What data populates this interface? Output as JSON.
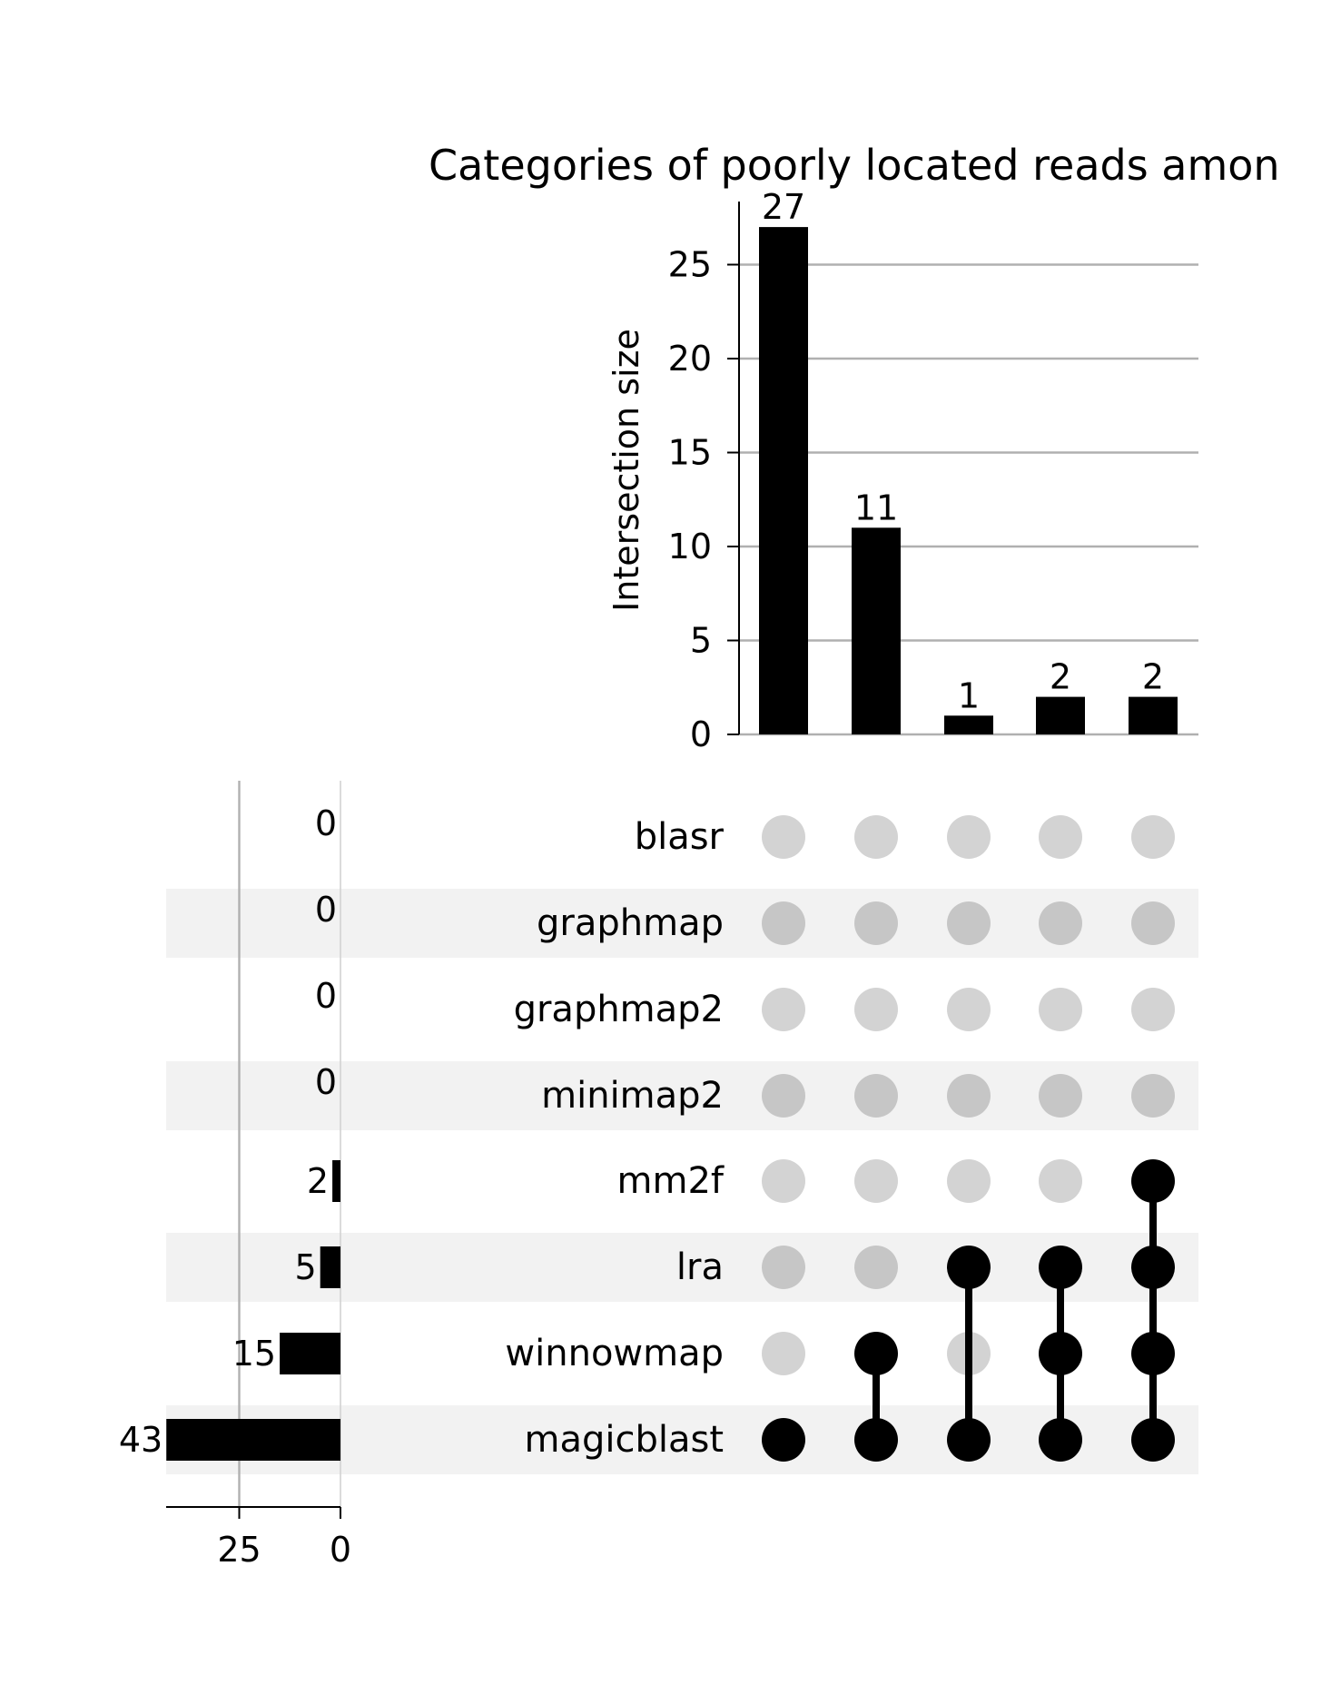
{
  "chart_data": {
    "type": "upset",
    "title": "Categories of poorly located reads amon",
    "intersections": {
      "ylabel": "Intersection size",
      "yticks": [
        0,
        5,
        10,
        15,
        20,
        25
      ],
      "ylim": [
        0,
        28
      ],
      "values": [
        27,
        11,
        1,
        2,
        2
      ],
      "value_labels": [
        "27",
        "11",
        "1",
        "2",
        "2"
      ],
      "grid": true
    },
    "sets": {
      "names": [
        "blasr",
        "graphmap",
        "graphmap2",
        "minimap2",
        "mm2f",
        "lra",
        "winnowmap",
        "magicblast"
      ],
      "sizes": [
        0,
        0,
        0,
        0,
        2,
        5,
        15,
        43
      ],
      "size_labels": [
        "0",
        "0",
        "0",
        "0",
        "2",
        "5",
        "15",
        "43"
      ],
      "xticks": [
        25,
        0
      ],
      "xtick_labels": [
        "25",
        "0"
      ],
      "xlim": [
        43,
        0
      ]
    },
    "membership": [
      [
        "magicblast"
      ],
      [
        "winnowmap",
        "magicblast"
      ],
      [
        "lra",
        "magicblast"
      ],
      [
        "lra",
        "winnowmap",
        "magicblast"
      ],
      [
        "mm2f",
        "lra",
        "winnowmap",
        "magicblast"
      ]
    ],
    "colors": {
      "bar": "#000000",
      "dot_active": "#000000",
      "dot_inactive": "#d3d3d3",
      "dot_inactive_shaded": "#c6c6c6",
      "stripe": "#f2f2f2",
      "grid": "#b0b0b0"
    }
  }
}
